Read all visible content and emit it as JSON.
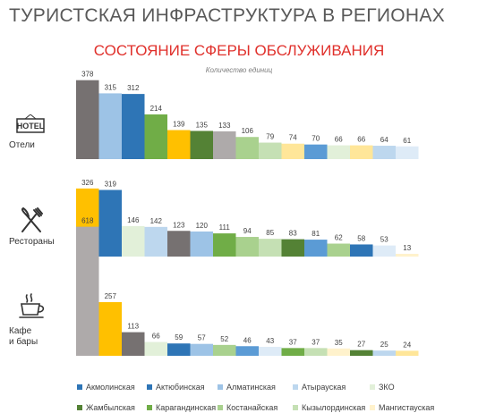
{
  "header": {
    "title": "ТУРИСТСКАЯ ИНФРАСТРУКТУРА В РЕГИОНАХ",
    "subtitle": "СОСТОЯНИЕ СФЕРЫ ОБСЛУЖИВАНИЯ",
    "unit": "Количество единиц"
  },
  "icons": {
    "hotel": "hotel-sign-icon",
    "hotel_text": "HOTEL",
    "restaurant": "fork-knife-icon",
    "cafe": "coffee-cup-icon"
  },
  "chart_data": {
    "type": "bar",
    "unit": "Количество единиц",
    "legend": {
      "placement": "bottom",
      "items": [
        {
          "name": "Акмолинская",
          "color": "#2e75b6"
        },
        {
          "name": "Актюбинская",
          "color": "#2e75b6"
        },
        {
          "name": "Алматинская",
          "color": "#9dc3e6"
        },
        {
          "name": "Атырауская",
          "color": "#bdd7ee"
        },
        {
          "name": "ЗКО",
          "color": "#e2f0d9"
        },
        {
          "name": "Жамбылская",
          "color": "#548235"
        },
        {
          "name": "Карагандинская",
          "color": "#70ad47"
        },
        {
          "name": "Костанайская",
          "color": "#a9d18e"
        },
        {
          "name": "Кызылординская",
          "color": "#c5e0b4"
        },
        {
          "name": "Мангистауская",
          "color": "#fff2cc"
        }
      ]
    },
    "groups": [
      {
        "name": "Отели",
        "values": [
          378,
          315,
          312,
          214,
          139,
          135,
          133,
          106,
          79,
          74,
          70,
          66,
          66,
          64,
          61
        ],
        "colors": [
          "#767171",
          "#9dc3e6",
          "#2e75b6",
          "#70ad47",
          "#ffc000",
          "#548235",
          "#aeaaaa",
          "#a9d18e",
          "#c5e0b4",
          "#ffe699",
          "#5b9bd5",
          "#e2f0d9",
          "#ffe699",
          "#bdd7ee",
          "#deebf7"
        ]
      },
      {
        "name": "Рестораны",
        "values": [
          326,
          319,
          146,
          142,
          123,
          120,
          111,
          94,
          85,
          83,
          81,
          62,
          58,
          53,
          13
        ],
        "colors": [
          "#ffc000",
          "#2e75b6",
          "#e2f0d9",
          "#bdd7ee",
          "#767171",
          "#9dc3e6",
          "#70ad47",
          "#a9d18e",
          "#c5e0b4",
          "#548235",
          "#5b9bd5",
          "#a9d18e",
          "#2e75b6",
          "#deebf7",
          "#fff2cc"
        ]
      },
      {
        "name": "Кафе\nи бары",
        "values": [
          618,
          257,
          113,
          66,
          59,
          57,
          52,
          46,
          43,
          37,
          37,
          35,
          27,
          25,
          24
        ],
        "colors": [
          "#aeaaaa",
          "#ffc000",
          "#767171",
          "#e2f0d9",
          "#2e75b6",
          "#9dc3e6",
          "#a9d18e",
          "#5b9bd5",
          "#deebf7",
          "#70ad47",
          "#c5e0b4",
          "#fff2cc",
          "#548235",
          "#bdd7ee",
          "#ffe699"
        ]
      }
    ]
  }
}
